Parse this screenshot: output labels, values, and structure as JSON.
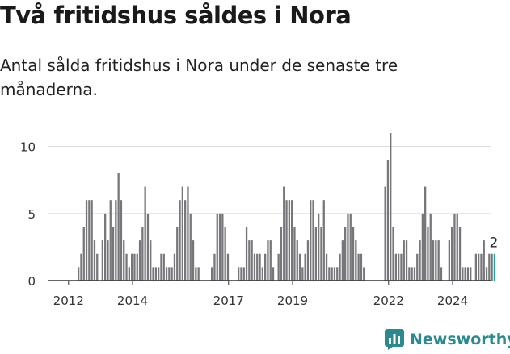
{
  "header": {
    "title": "Två fritidshus såldes i Nora",
    "subtitle": "Antal sålda fritidshus i Nora under de senaste tre månaderna."
  },
  "brand": {
    "name": "Newsworthy",
    "icon": "bar-chart-logo-icon",
    "color": "#2a8a8f"
  },
  "colors": {
    "bar": "#77767a",
    "highlight": "#1fa598",
    "grid": "#d9d9d9",
    "axis": "#333333",
    "text": "#333333"
  },
  "chart_data": {
    "type": "bar",
    "title": "Två fritidshus såldes i Nora",
    "subtitle": "Antal sålda fritidshus i Nora under de senaste tre månaderna.",
    "xlabel": "",
    "ylabel": "",
    "ylim": [
      0,
      11
    ],
    "yticks": [
      0,
      5,
      10
    ],
    "xticks": [
      "2012",
      "2014",
      "2017",
      "2019",
      "2022",
      "2024"
    ],
    "x_start": "2011-07",
    "x_end": "2024-07",
    "frequency": "monthly (rolling three-month total)",
    "grid": true,
    "last_value_label": "2",
    "values": [
      0,
      0,
      0,
      0,
      0,
      0,
      0,
      0,
      0,
      0,
      1,
      2,
      4,
      6,
      6,
      6,
      3,
      2,
      0,
      3,
      5,
      3,
      6,
      4,
      6,
      8,
      6,
      3,
      2,
      1,
      2,
      2,
      2,
      3,
      4,
      7,
      5,
      3,
      1,
      1,
      1,
      2,
      2,
      1,
      1,
      1,
      2,
      4,
      6,
      7,
      6,
      7,
      5,
      3,
      1,
      1,
      0,
      0,
      0,
      0,
      1,
      2,
      5,
      5,
      5,
      4,
      2,
      0,
      0,
      0,
      1,
      1,
      1,
      4,
      3,
      3,
      2,
      2,
      2,
      1,
      2,
      3,
      3,
      1,
      0,
      2,
      4,
      7,
      6,
      6,
      6,
      4,
      3,
      2,
      1,
      2,
      3,
      6,
      6,
      4,
      5,
      4,
      6,
      2,
      1,
      1,
      1,
      1,
      2,
      3,
      4,
      5,
      5,
      4,
      3,
      2,
      2,
      1,
      0,
      0,
      0,
      0,
      0,
      0,
      0,
      7,
      9,
      11,
      4,
      2,
      2,
      2,
      3,
      3,
      1,
      1,
      1,
      2,
      3,
      5,
      7,
      4,
      5,
      3,
      3,
      3,
      1,
      0,
      0,
      3,
      4,
      5,
      5,
      4,
      1,
      1,
      1,
      1,
      0,
      2,
      2,
      2,
      3,
      1,
      2,
      2,
      2
    ]
  }
}
